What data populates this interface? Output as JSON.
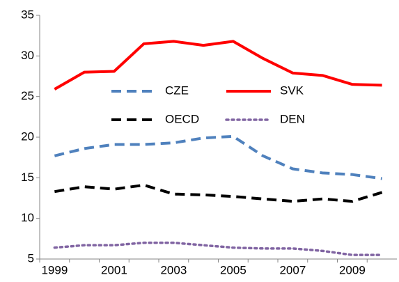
{
  "chart_data": {
    "type": "line",
    "categories": [
      "1999",
      null,
      "2001",
      null,
      "2003",
      null,
      "2005",
      null,
      "2007",
      null,
      "2009",
      null
    ],
    "series": [
      {
        "name": "CZE",
        "color": "#4f81bd",
        "dash": "dashed",
        "values": [
          17.7,
          18.6,
          19.1,
          19.1,
          19.3,
          19.9,
          20.1,
          17.7,
          16.1,
          15.6,
          15.4,
          14.9
        ]
      },
      {
        "name": "SVK",
        "color": "#ff0000",
        "dash": "solid",
        "values": [
          25.9,
          28.0,
          28.1,
          31.5,
          31.8,
          31.3,
          31.8,
          29.7,
          27.9,
          27.6,
          26.5,
          26.4
        ]
      },
      {
        "name": "OECD",
        "color": "#000000",
        "dash": "dashed",
        "values": [
          13.3,
          13.9,
          13.6,
          14.1,
          13.0,
          12.9,
          12.7,
          12.4,
          12.1,
          12.4,
          12.1,
          13.2
        ]
      },
      {
        "name": "DEN",
        "color": "#8064a2",
        "dash": "dotted",
        "values": [
          6.4,
          6.7,
          6.7,
          7.0,
          7.0,
          6.7,
          6.4,
          6.3,
          6.3,
          6.0,
          5.5,
          5.5
        ]
      }
    ],
    "ylim": [
      5,
      35
    ],
    "yticks": [
      5,
      10,
      15,
      20,
      25,
      30,
      35
    ],
    "grid": false
  }
}
